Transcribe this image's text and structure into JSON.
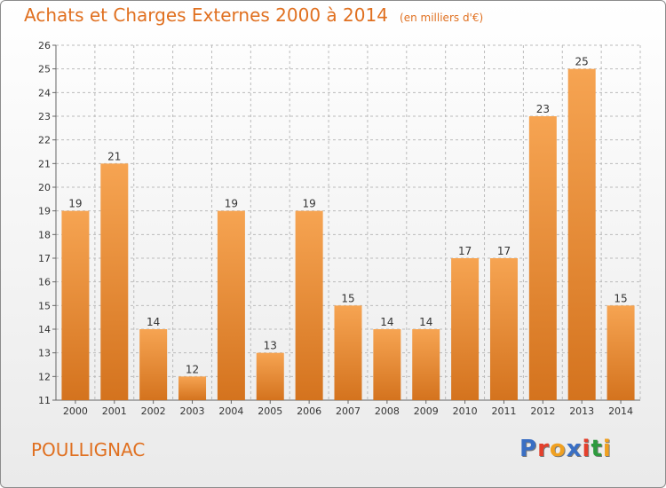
{
  "header": {
    "title": "Achats et Charges Externes 2000 à 2014",
    "subtitle": "(en milliers d'€)"
  },
  "commune": "POULLIGNAC",
  "brand": {
    "letters": [
      "P",
      "r",
      "o",
      "x",
      "i",
      "t",
      "i"
    ],
    "colors": [
      "#3a6fc4",
      "#e4402c",
      "#f0a020",
      "#3a6fc4",
      "#e4402c",
      "#2e9a3e",
      "#f0a020"
    ]
  },
  "colors": {
    "accent": "#e07020",
    "bar_top": "#f6a452",
    "bar_bottom": "#d4731e",
    "grid": "#bbbbbb"
  },
  "chart_data": {
    "type": "bar",
    "title": "Achats et Charges Externes 2000 à 2014",
    "subtitle": "(en milliers d'€)",
    "categories": [
      "2000",
      "2001",
      "2002",
      "2003",
      "2004",
      "2005",
      "2006",
      "2007",
      "2008",
      "2009",
      "2010",
      "2011",
      "2012",
      "2013",
      "2014"
    ],
    "values": [
      19,
      21,
      14,
      12,
      19,
      13,
      19,
      15,
      14,
      14,
      17,
      17,
      23,
      25,
      15
    ],
    "ylim": [
      11,
      26
    ],
    "yticks": [
      11,
      12,
      13,
      14,
      15,
      16,
      17,
      18,
      19,
      20,
      21,
      22,
      23,
      24,
      25,
      26
    ],
    "grid": true,
    "legend": "none"
  }
}
